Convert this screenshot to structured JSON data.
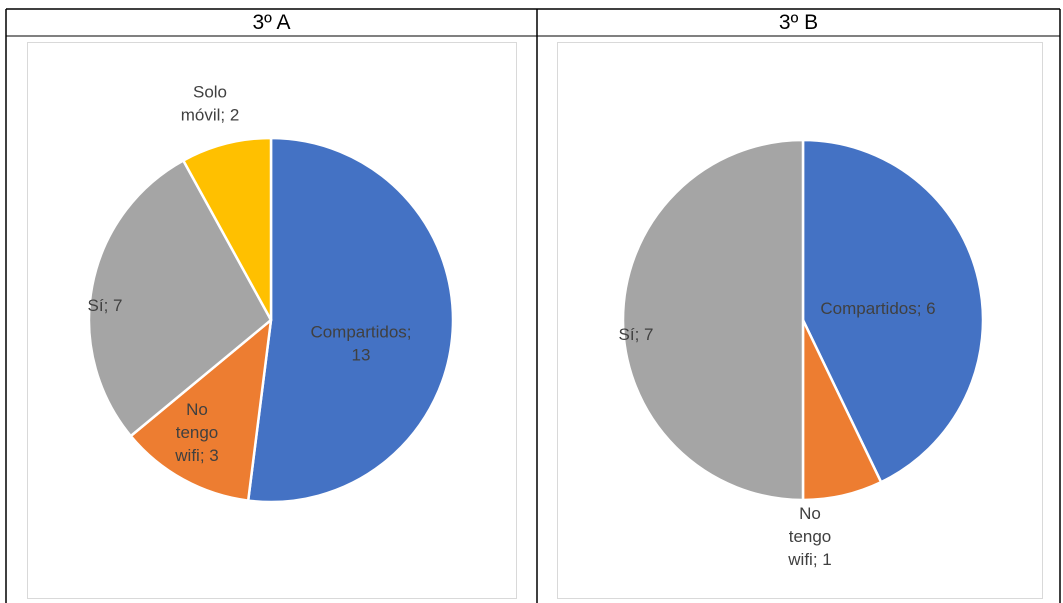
{
  "chart_data": [
    {
      "type": "pie",
      "title": "3º A",
      "slices": [
        {
          "label": "Compartidos",
          "value": 13,
          "color": "#4472c4",
          "label_lines": [
            "Compartidos;",
            "13"
          ]
        },
        {
          "label": "No tengo wifi",
          "value": 3,
          "color": "#ed7d31",
          "label_lines": [
            "No",
            "tengo",
            "wifi; 3"
          ]
        },
        {
          "label": "Sí",
          "value": 7,
          "color": "#a5a5a5",
          "label_lines": [
            "Sí; 7"
          ]
        },
        {
          "label": "Solo móvil",
          "value": 2,
          "color": "#ffc000",
          "label_lines": [
            "Solo",
            "móvil; 2"
          ]
        }
      ]
    },
    {
      "type": "pie",
      "title": "3º B",
      "slices": [
        {
          "label": "Compartidos",
          "value": 6,
          "color": "#4472c4",
          "label_lines": [
            "Compartidos; 6"
          ]
        },
        {
          "label": "No tengo wifi",
          "value": 1,
          "color": "#ed7d31",
          "label_lines": [
            "No",
            "tengo",
            "wifi; 1"
          ]
        },
        {
          "label": "Sí",
          "value": 7,
          "color": "#a5a5a5",
          "label_lines": [
            "Sí; 7"
          ]
        }
      ]
    }
  ]
}
